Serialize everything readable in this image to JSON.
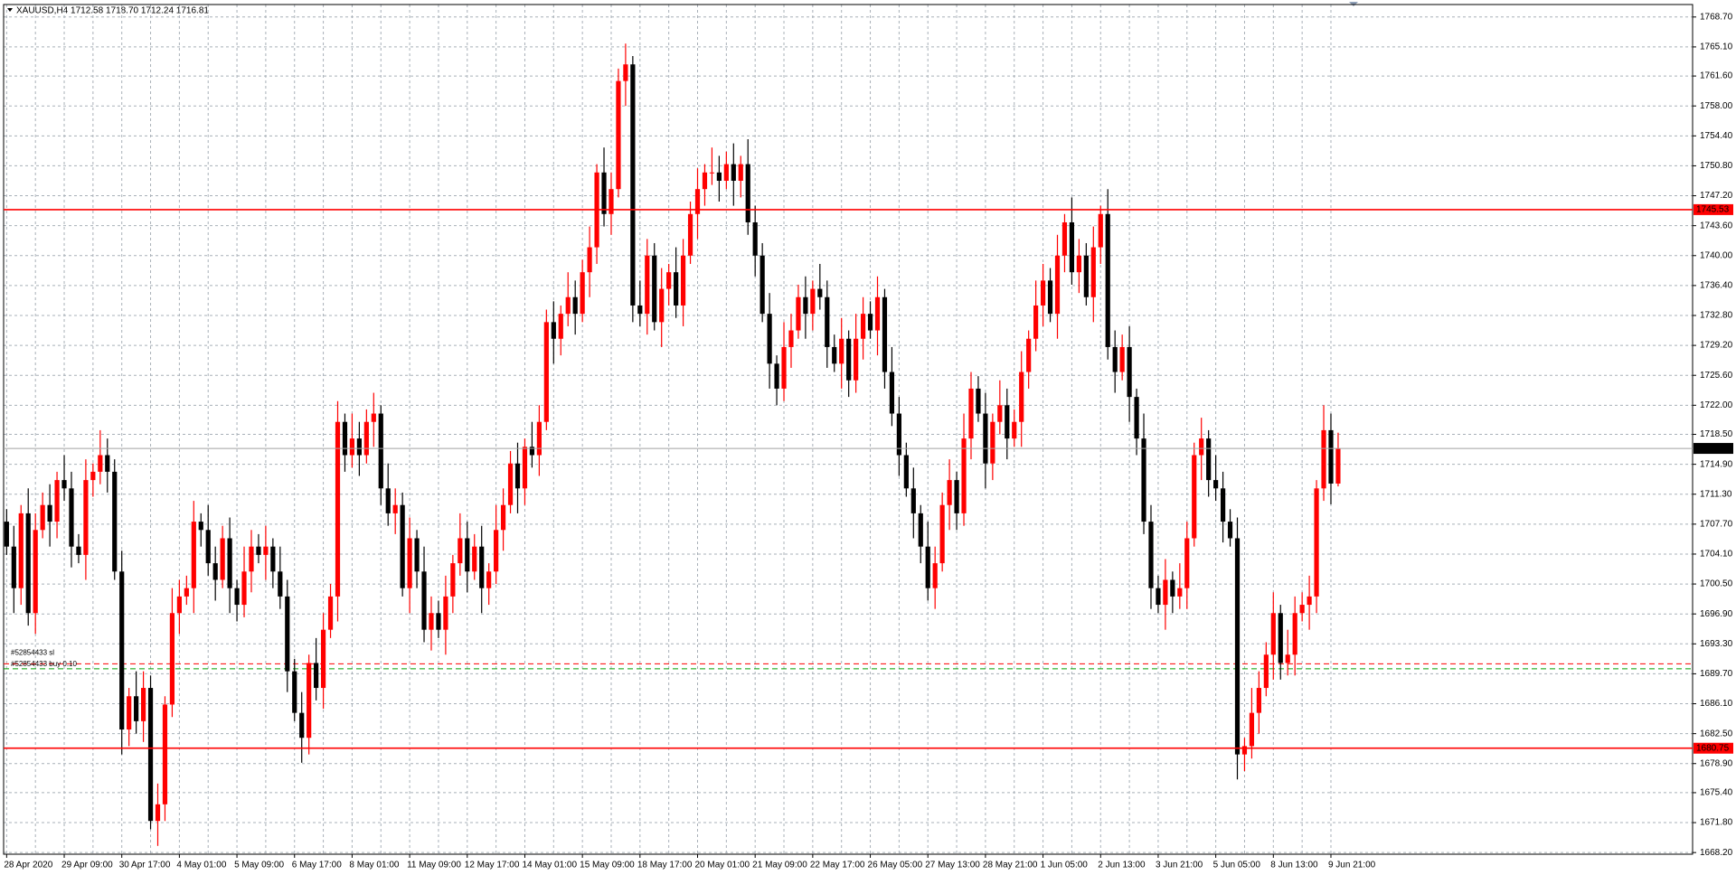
{
  "chart_data": {
    "type": "candlestick",
    "title": "XAUUSD,H4  1712.58 1718.70 1712.24 1716.81",
    "categories": [
      "28 Apr 2020",
      null,
      null,
      null,
      null,
      null,
      null,
      null,
      "29 Apr 09:00",
      null,
      null,
      null,
      null,
      null,
      null,
      null,
      "30 Apr 17:00",
      null,
      null,
      null,
      null,
      null,
      null,
      null,
      "4 May 01:00",
      null,
      null,
      null,
      null,
      null,
      null,
      null,
      "5 May 09:00",
      null,
      null,
      null,
      null,
      null,
      null,
      null,
      "6 May 17:00",
      null,
      null,
      null,
      null,
      null,
      null,
      null,
      "8 May 01:00",
      null,
      null,
      null,
      null,
      null,
      null,
      null,
      "11 May 09:00",
      null,
      null,
      null,
      null,
      null,
      null,
      null,
      "12 May 17:00",
      null,
      null,
      null,
      null,
      null,
      null,
      null,
      "14 May 01:00",
      null,
      null,
      null,
      null,
      null,
      null,
      null,
      "15 May 09:00",
      null,
      null,
      null,
      null,
      null,
      null,
      null,
      "18 May 17:00",
      null,
      null,
      null,
      null,
      null,
      null,
      null,
      "20 May 01:00",
      null,
      null,
      null,
      null,
      null,
      null,
      null,
      "21 May 09:00",
      null,
      null,
      null,
      null,
      null,
      null,
      null,
      "22 May 17:00",
      null,
      null,
      null,
      null,
      null,
      null,
      null,
      "26 May 05:00",
      null,
      null,
      null,
      null,
      null,
      null,
      null,
      "27 May 13:00",
      null,
      null,
      null,
      null,
      null,
      null,
      null,
      "28 May 21:00",
      null,
      null,
      null,
      null,
      null,
      null,
      null,
      "1 Jun 05:00",
      null,
      null,
      null,
      null,
      null,
      null,
      null,
      "2 Jun 13:00",
      null,
      null,
      null,
      null,
      null,
      null,
      null,
      "3 Jun 21:00",
      null,
      null,
      null,
      null,
      null,
      null,
      null,
      "5 Jun 05:00",
      null,
      null,
      null,
      null,
      null,
      null,
      null,
      "8 Jun 13:00",
      null,
      null,
      null,
      null,
      null,
      null,
      null,
      "9 Jun 21:00",
      null
    ],
    "ohlc": [
      [
        1708,
        1709.5,
        1704,
        1705
      ],
      [
        1705,
        1707.5,
        1697,
        1700
      ],
      [
        1700,
        1710,
        1698,
        1709
      ],
      [
        1709,
        1712,
        1695.5,
        1697
      ],
      [
        1697,
        1709,
        1694.5,
        1707
      ],
      [
        1707,
        1711.5,
        1706,
        1710
      ],
      [
        1710,
        1712.5,
        1705,
        1708
      ],
      [
        1708,
        1714,
        1706,
        1713
      ],
      [
        1713,
        1716,
        1710.5,
        1712
      ],
      [
        1712,
        1714,
        1702.5,
        1705
      ],
      [
        1705,
        1706.5,
        1703,
        1704
      ],
      [
        1704,
        1715.5,
        1701,
        1713
      ],
      [
        1713,
        1715,
        1711,
        1714
      ],
      [
        1714,
        1719,
        1712.5,
        1716
      ],
      [
        1716,
        1718,
        1711.5,
        1714
      ],
      [
        1714,
        1715.5,
        1701,
        1702
      ],
      [
        1702,
        1704.5,
        1680,
        1683
      ],
      [
        1683,
        1688,
        1681,
        1687
      ],
      [
        1687,
        1690,
        1682.5,
        1684
      ],
      [
        1684,
        1690,
        1681.5,
        1688
      ],
      [
        1688,
        1689.5,
        1671,
        1672
      ],
      [
        1672,
        1676.5,
        1669,
        1674
      ],
      [
        1674,
        1687,
        1672,
        1686
      ],
      [
        1686,
        1700,
        1684.5,
        1697
      ],
      [
        1697,
        1701,
        1694.5,
        1699
      ],
      [
        1699,
        1701.5,
        1698,
        1700
      ],
      [
        1700,
        1710.5,
        1697,
        1708
      ],
      [
        1708,
        1709,
        1705,
        1707
      ],
      [
        1707,
        1710,
        1701.5,
        1703
      ],
      [
        1703,
        1705,
        1698.5,
        1701
      ],
      [
        1701,
        1707.5,
        1700,
        1706
      ],
      [
        1706,
        1708.5,
        1697,
        1700
      ],
      [
        1700,
        1701,
        1696,
        1698
      ],
      [
        1698,
        1705,
        1696.5,
        1702
      ],
      [
        1702,
        1707,
        1699.5,
        1705
      ],
      [
        1705,
        1706.5,
        1703,
        1704
      ],
      [
        1704,
        1707.5,
        1701,
        1705
      ],
      [
        1705,
        1706,
        1700,
        1702
      ],
      [
        1702,
        1705,
        1697.5,
        1699
      ],
      [
        1699,
        1701,
        1687.5,
        1690
      ],
      [
        1690,
        1691.5,
        1684,
        1685
      ],
      [
        1685,
        1687.5,
        1679,
        1682
      ],
      [
        1682,
        1692,
        1680,
        1691
      ],
      [
        1691,
        1694,
        1686.5,
        1688
      ],
      [
        1688,
        1697,
        1685.5,
        1695
      ],
      [
        1695,
        1700.5,
        1694,
        1699
      ],
      [
        1699,
        1722.5,
        1696,
        1720
      ],
      [
        1720,
        1721,
        1714,
        1716
      ],
      [
        1716,
        1721,
        1714.5,
        1718
      ],
      [
        1718,
        1720,
        1713.5,
        1716
      ],
      [
        1716,
        1721.5,
        1715,
        1720
      ],
      [
        1720,
        1723.5,
        1717,
        1721
      ],
      [
        1721,
        1722,
        1710,
        1712
      ],
      [
        1712,
        1715,
        1707.5,
        1709
      ],
      [
        1709,
        1712,
        1706.5,
        1710
      ],
      [
        1710,
        1711.5,
        1699,
        1700
      ],
      [
        1700,
        1708.5,
        1697,
        1706
      ],
      [
        1706,
        1707,
        1700,
        1702
      ],
      [
        1702,
        1705,
        1693.5,
        1695
      ],
      [
        1695,
        1699,
        1692.5,
        1697
      ],
      [
        1697,
        1698.5,
        1694,
        1695
      ],
      [
        1695,
        1701.5,
        1692,
        1699
      ],
      [
        1699,
        1704,
        1697,
        1703
      ],
      [
        1703,
        1709,
        1701.5,
        1706
      ],
      [
        1706,
        1708,
        1699.5,
        1702
      ],
      [
        1702,
        1706.5,
        1701,
        1705
      ],
      [
        1705,
        1707.5,
        1697,
        1700
      ],
      [
        1700,
        1703,
        1698,
        1702
      ],
      [
        1702,
        1710,
        1700.5,
        1707
      ],
      [
        1707,
        1712,
        1704.5,
        1710
      ],
      [
        1710,
        1716.5,
        1709,
        1715
      ],
      [
        1715,
        1717.5,
        1709,
        1712
      ],
      [
        1712,
        1718,
        1710,
        1717
      ],
      [
        1717,
        1720,
        1714.5,
        1716
      ],
      [
        1716,
        1722,
        1713.5,
        1720
      ],
      [
        1720,
        1733.5,
        1719,
        1732
      ],
      [
        1732,
        1734.5,
        1727,
        1730
      ],
      [
        1730,
        1734,
        1728,
        1733
      ],
      [
        1733,
        1738,
        1731.5,
        1735
      ],
      [
        1735,
        1737,
        1730.5,
        1733
      ],
      [
        1733,
        1739.5,
        1732,
        1738
      ],
      [
        1738,
        1743.5,
        1735,
        1741
      ],
      [
        1741,
        1751,
        1739,
        1750
      ],
      [
        1750,
        1753,
        1743.5,
        1745
      ],
      [
        1745,
        1750,
        1742.5,
        1748
      ],
      [
        1748,
        1762.5,
        1747,
        1761
      ],
      [
        1761,
        1765.5,
        1758,
        1763
      ],
      [
        1763,
        1764,
        1732,
        1734
      ],
      [
        1734,
        1737,
        1731.5,
        1733
      ],
      [
        1733,
        1742,
        1730.5,
        1740
      ],
      [
        1740,
        1741.5,
        1731,
        1732
      ],
      [
        1732,
        1738.5,
        1729,
        1736
      ],
      [
        1736,
        1739,
        1734,
        1738
      ],
      [
        1738,
        1741,
        1732.5,
        1734
      ],
      [
        1734,
        1742,
        1731.5,
        1740
      ],
      [
        1740,
        1746.5,
        1739,
        1745
      ],
      [
        1745,
        1750.5,
        1742,
        1748
      ],
      [
        1748,
        1751,
        1746,
        1750
      ],
      [
        1750,
        1753,
        1748.5,
        1750
      ],
      [
        1750,
        1752,
        1746.5,
        1749
      ],
      [
        1749,
        1752.5,
        1748,
        1751
      ],
      [
        1751,
        1753.5,
        1746,
        1749
      ],
      [
        1749,
        1752,
        1747,
        1751
      ],
      [
        1751,
        1754,
        1742.5,
        1744
      ],
      [
        1744,
        1746,
        1737.5,
        1740
      ],
      [
        1740,
        1741.5,
        1732,
        1733
      ],
      [
        1733,
        1735.5,
        1724,
        1727
      ],
      [
        1727,
        1728,
        1722,
        1724
      ],
      [
        1724,
        1732,
        1722.5,
        1729
      ],
      [
        1729,
        1733,
        1726.5,
        1731
      ],
      [
        1731,
        1736.5,
        1730,
        1735
      ],
      [
        1735,
        1737.5,
        1730,
        1733
      ],
      [
        1733,
        1737,
        1731,
        1736
      ],
      [
        1736,
        1739,
        1733.5,
        1735
      ],
      [
        1735,
        1737,
        1726.5,
        1729
      ],
      [
        1729,
        1730.5,
        1726,
        1727
      ],
      [
        1727,
        1732.5,
        1724,
        1730
      ],
      [
        1730,
        1731,
        1723,
        1725
      ],
      [
        1725,
        1733,
        1723.5,
        1730
      ],
      [
        1730,
        1735,
        1727.5,
        1733
      ],
      [
        1733,
        1734.5,
        1730,
        1731
      ],
      [
        1731,
        1737.5,
        1728,
        1735
      ],
      [
        1735,
        1736,
        1724,
        1726
      ],
      [
        1726,
        1729,
        1719.5,
        1721
      ],
      [
        1721,
        1723,
        1713.5,
        1716
      ],
      [
        1716,
        1717.5,
        1711,
        1712
      ],
      [
        1712,
        1714.5,
        1706,
        1709
      ],
      [
        1709,
        1710,
        1703,
        1705
      ],
      [
        1705,
        1708,
        1698.5,
        1700
      ],
      [
        1700,
        1705,
        1697.5,
        1703
      ],
      [
        1703,
        1711.5,
        1702,
        1710
      ],
      [
        1710,
        1715.5,
        1707,
        1713
      ],
      [
        1713,
        1714,
        1707,
        1709
      ],
      [
        1709,
        1721,
        1707.5,
        1718
      ],
      [
        1718,
        1726,
        1715.5,
        1724
      ],
      [
        1724,
        1725.5,
        1720,
        1721
      ],
      [
        1721,
        1723.5,
        1712,
        1715
      ],
      [
        1715,
        1721,
        1713,
        1720
      ],
      [
        1720,
        1725,
        1718.5,
        1722
      ],
      [
        1722,
        1724,
        1715.5,
        1718
      ],
      [
        1718,
        1721.5,
        1717,
        1720
      ],
      [
        1720,
        1728.5,
        1717,
        1726
      ],
      [
        1726,
        1731,
        1724,
        1730
      ],
      [
        1730,
        1737,
        1728.5,
        1734
      ],
      [
        1734,
        1739,
        1731.5,
        1737
      ],
      [
        1737,
        1738.5,
        1732,
        1733
      ],
      [
        1733,
        1742.5,
        1730,
        1740
      ],
      [
        1740,
        1745,
        1738,
        1744
      ],
      [
        1744,
        1747,
        1736.5,
        1738
      ],
      [
        1738,
        1742,
        1735.5,
        1740
      ],
      [
        1740,
        1741.5,
        1734,
        1735
      ],
      [
        1735,
        1743.5,
        1732,
        1741
      ],
      [
        1741,
        1746,
        1739,
        1745
      ],
      [
        1745,
        1748,
        1727.5,
        1729
      ],
      [
        1729,
        1731,
        1723.5,
        1726
      ],
      [
        1726,
        1730.5,
        1725,
        1729
      ],
      [
        1729,
        1731.5,
        1720,
        1723
      ],
      [
        1723,
        1724,
        1716,
        1718
      ],
      [
        1718,
        1721,
        1706.5,
        1708
      ],
      [
        1708,
        1710,
        1697.5,
        1700
      ],
      [
        1700,
        1701.5,
        1697,
        1698
      ],
      [
        1698,
        1703.5,
        1695,
        1701
      ],
      [
        1701,
        1702,
        1697,
        1699
      ],
      [
        1699,
        1703,
        1697.5,
        1700
      ],
      [
        1700,
        1708,
        1697.5,
        1706
      ],
      [
        1706,
        1717.5,
        1705,
        1716
      ],
      [
        1716,
        1720.5,
        1713,
        1718
      ],
      [
        1718,
        1719,
        1711,
        1713
      ],
      [
        1713,
        1716,
        1710.5,
        1712
      ],
      [
        1712,
        1714,
        1705.5,
        1708
      ],
      [
        1708,
        1709.5,
        1705,
        1706
      ],
      [
        1706,
        1708.5,
        1677,
        1680
      ],
      [
        1680,
        1682,
        1678,
        1681
      ],
      [
        1681,
        1688,
        1679.5,
        1685
      ],
      [
        1685,
        1690,
        1682.5,
        1688
      ],
      [
        1688,
        1693.5,
        1687,
        1692
      ],
      [
        1692,
        1699.5,
        1689,
        1697
      ],
      [
        1697,
        1698,
        1689,
        1691
      ],
      [
        1691,
        1695,
        1689.5,
        1692
      ],
      [
        1692,
        1699,
        1689.5,
        1697
      ],
      [
        1697,
        1699.5,
        1696,
        1698
      ],
      [
        1698,
        1701.5,
        1695,
        1699
      ],
      [
        1699,
        1713,
        1697,
        1712
      ],
      [
        1712,
        1722,
        1710.5,
        1719
      ],
      [
        1719,
        1721,
        1710.08,
        1712.58
      ],
      [
        1712.58,
        1718.7,
        1712.24,
        1716.81
      ]
    ],
    "up_color": "#ff0000",
    "down_color": "#000000",
    "ylim": [
      1668.0,
      1770.2
    ],
    "yticks": [
      {
        "value": 1768.7,
        "label": "1768.70"
      },
      {
        "value": 1765.1,
        "label": "1765.10"
      },
      {
        "value": 1761.6,
        "label": "1761.60"
      },
      {
        "value": 1758.0,
        "label": "1758.00"
      },
      {
        "value": 1754.4,
        "label": "1754.40"
      },
      {
        "value": 1750.8,
        "label": "1750.80"
      },
      {
        "value": 1747.2,
        "label": "1747.20"
      },
      {
        "value": 1743.6,
        "label": "1743.60"
      },
      {
        "value": 1740.0,
        "label": "1740.00"
      },
      {
        "value": 1736.4,
        "label": "1736.40"
      },
      {
        "value": 1732.8,
        "label": "1732.80"
      },
      {
        "value": 1729.2,
        "label": "1729.20"
      },
      {
        "value": 1725.6,
        "label": "1725.60"
      },
      {
        "value": 1722.0,
        "label": "1722.00"
      },
      {
        "value": 1718.5,
        "label": "1718.50"
      },
      {
        "value": 1714.9,
        "label": "1714.90"
      },
      {
        "value": 1711.3,
        "label": "1711.30"
      },
      {
        "value": 1707.7,
        "label": "1707.70"
      },
      {
        "value": 1704.1,
        "label": "1704.10"
      },
      {
        "value": 1700.5,
        "label": "1700.50"
      },
      {
        "value": 1696.9,
        "label": "1696.90"
      },
      {
        "value": 1693.3,
        "label": "1693.30"
      },
      {
        "value": 1689.7,
        "label": "1689.70"
      },
      {
        "value": 1686.1,
        "label": "1686.10"
      },
      {
        "value": 1682.5,
        "label": "1682.50"
      },
      {
        "value": 1678.9,
        "label": "1678.90"
      },
      {
        "value": 1675.4,
        "label": "1675.40"
      },
      {
        "value": 1671.8,
        "label": "1671.80"
      },
      {
        "value": 1668.2,
        "label": "1668.20"
      }
    ],
    "grid": true,
    "hlines": [
      {
        "value": 1745.53,
        "color": "#ff0000",
        "tag_color": "#ff0000"
      },
      {
        "value": 1680.75,
        "color": "#ff0000",
        "tag_color": "#ff0000"
      },
      {
        "value": 1716.81,
        "color": "#a0a0a0",
        "tag_color": "#000000"
      }
    ],
    "order_lines": [
      {
        "value": 1690.9,
        "label": "#52854433 sl",
        "color": "#ff0000"
      },
      {
        "value": 1690.3,
        "label": "#52854433 buy 0.10",
        "color": "#00a000"
      }
    ]
  }
}
